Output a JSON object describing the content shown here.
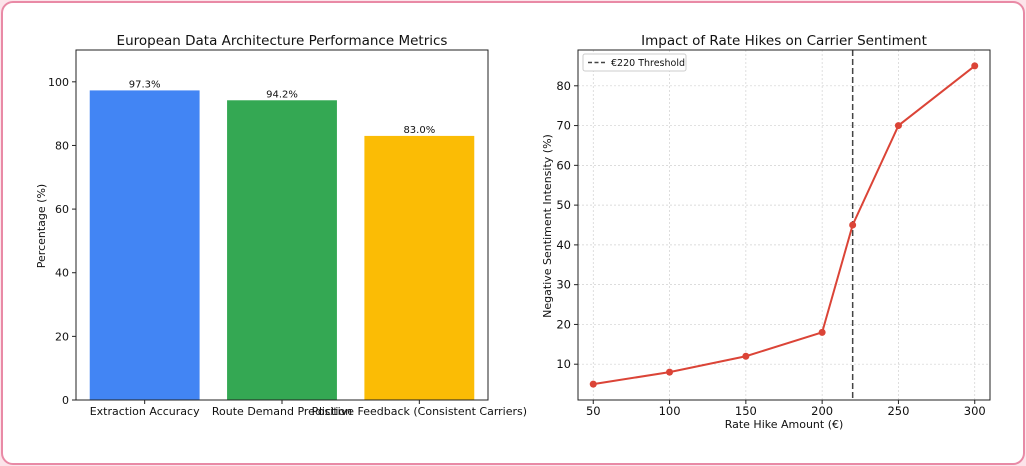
{
  "chart_data": [
    {
      "type": "bar",
      "title": "European Data Architecture Performance Metrics",
      "xlabel": "",
      "ylabel": "Percentage (%)",
      "ylim": [
        0,
        110
      ],
      "yticks": [
        0,
        20,
        40,
        60,
        80,
        100
      ],
      "categories": [
        "Extraction Accuracy",
        "Route Demand Prediction",
        "Positive Feedback (Consistent Carriers)"
      ],
      "values": [
        97.3,
        94.2,
        83.0
      ],
      "data_labels": [
        "97.3%",
        "94.2%",
        "83.0%"
      ],
      "colors": [
        "#4285F4",
        "#34A853",
        "#FBBC05"
      ],
      "grid": false
    },
    {
      "type": "line",
      "title": "Impact of Rate Hikes on Carrier Sentiment",
      "xlabel": "Rate Hike Amount (€)",
      "ylabel": "Negative Sentiment Intensity (%)",
      "x": [
        50,
        100,
        150,
        200,
        220,
        250,
        300
      ],
      "series": [
        {
          "values": [
            5,
            8,
            12,
            18,
            45,
            70,
            85
          ],
          "color": "#DB4437"
        }
      ],
      "xlim": [
        40,
        310
      ],
      "ylim": [
        1,
        89
      ],
      "xticks": [
        50,
        100,
        150,
        200,
        250,
        300
      ],
      "yticks": [
        10,
        20,
        30,
        40,
        50,
        60,
        70,
        80
      ],
      "threshold": {
        "x": 220,
        "label": "€220 Threshold",
        "style": "dashed",
        "color": "#444444"
      },
      "legend": "top-left",
      "grid": true
    }
  ]
}
